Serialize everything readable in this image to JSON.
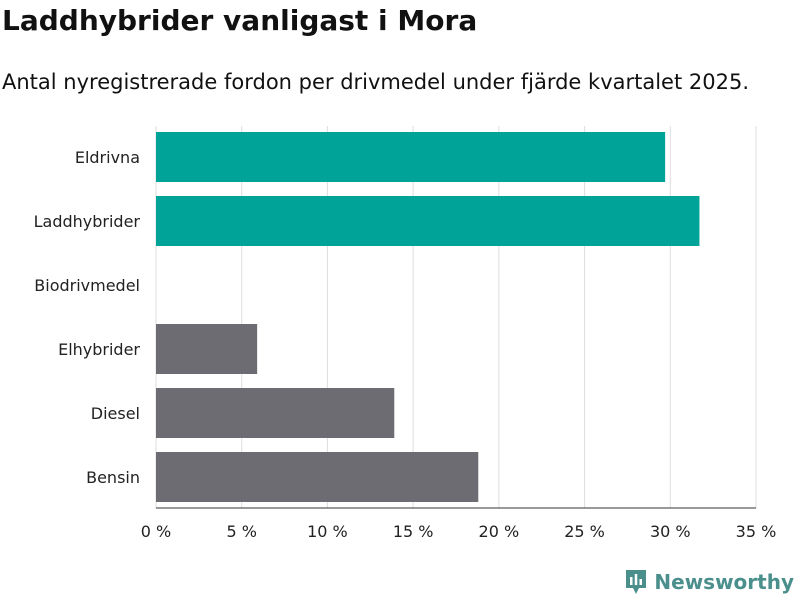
{
  "header": {
    "title": "Laddhybrider vanligast i Mora",
    "subtitle": "Antal nyregistrerade fordon per drivmedel under fjärde kvartalet 2025."
  },
  "brand": {
    "name": "Newsworthy",
    "color": "#4b8f8c"
  },
  "colors": {
    "highlight": "#00a398",
    "default": "#6d6c72",
    "grid": "#dddddd"
  },
  "chart_data": {
    "type": "bar",
    "orientation": "horizontal",
    "title": "Laddhybrider vanligast i Mora",
    "subtitle": "Antal nyregistrerade fordon per drivmedel under fjärde kvartalet 2025.",
    "xlabel": "",
    "ylabel": "",
    "xlim": [
      0,
      35
    ],
    "x_ticks": [
      0,
      5,
      10,
      15,
      20,
      25,
      30,
      35
    ],
    "x_tick_labels": [
      "0 %",
      "5 %",
      "10 %",
      "15 %",
      "20 %",
      "25 %",
      "30 %",
      "35 %"
    ],
    "grid": true,
    "categories": [
      "Eldrivna",
      "Laddhybrider",
      "Biodrivmedel",
      "Elhybrider",
      "Diesel",
      "Bensin"
    ],
    "values": [
      29.7,
      31.7,
      0,
      5.9,
      13.9,
      18.8
    ],
    "highlighted": [
      "Eldrivna",
      "Laddhybrider"
    ]
  }
}
